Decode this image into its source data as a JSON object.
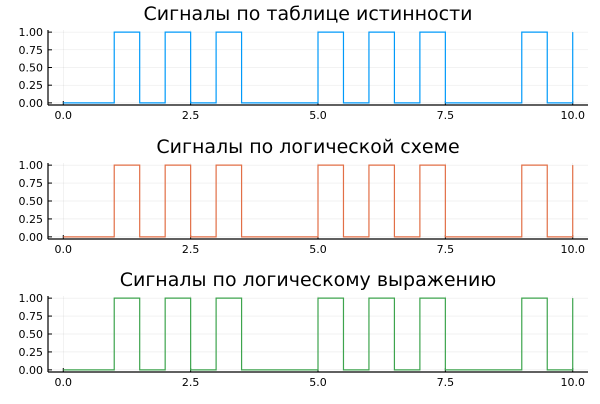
{
  "chart_data": [
    {
      "type": "line",
      "step": "post",
      "title": "Сигналы по таблице истинности",
      "color": "#009AFA",
      "x": [
        0,
        1,
        1.5,
        2,
        2.5,
        3,
        3.5,
        5,
        5.5,
        6,
        6.5,
        7,
        7.5,
        9,
        9.5,
        10
      ],
      "y": [
        0,
        1,
        0,
        1,
        0,
        1,
        0,
        1,
        0,
        1,
        0,
        1,
        0,
        1,
        0,
        1
      ],
      "xlim": [
        -0.3,
        10.3
      ],
      "ylim": [
        -0.03,
        1.03
      ],
      "xticks": [
        "0.0",
        "2.5",
        "5.0",
        "7.5",
        "10.0"
      ],
      "yticks": [
        "0.00",
        "0.25",
        "0.50",
        "0.75",
        "1.00"
      ],
      "grid": true,
      "legend": "none"
    },
    {
      "type": "line",
      "step": "post",
      "title": "Сигналы по логической схеме",
      "color": "#E26F46",
      "x": [
        0,
        1,
        1.5,
        2,
        2.5,
        3,
        3.5,
        5,
        5.5,
        6,
        6.5,
        7,
        7.5,
        9,
        9.5,
        10
      ],
      "y": [
        0,
        1,
        0,
        1,
        0,
        1,
        0,
        1,
        0,
        1,
        0,
        1,
        0,
        1,
        0,
        1
      ],
      "xlim": [
        -0.3,
        10.3
      ],
      "ylim": [
        -0.03,
        1.03
      ],
      "xticks": [
        "0.0",
        "2.5",
        "5.0",
        "7.5",
        "10.0"
      ],
      "yticks": [
        "0.00",
        "0.25",
        "0.50",
        "0.75",
        "1.00"
      ],
      "grid": true,
      "legend": "none"
    },
    {
      "type": "line",
      "step": "post",
      "title": "Сигналы по логическому выражению",
      "color": "#3DA44D",
      "x": [
        0,
        1,
        1.5,
        2,
        2.5,
        3,
        3.5,
        5,
        5.5,
        6,
        6.5,
        7,
        7.5,
        9,
        9.5,
        10
      ],
      "y": [
        0,
        1,
        0,
        1,
        0,
        1,
        0,
        1,
        0,
        1,
        0,
        1,
        0,
        1,
        0,
        1
      ],
      "xlim": [
        -0.3,
        10.3
      ],
      "ylim": [
        -0.03,
        1.03
      ],
      "xticks": [
        "0.0",
        "2.5",
        "5.0",
        "7.5",
        "10.0"
      ],
      "yticks": [
        "0.00",
        "0.25",
        "0.50",
        "0.75",
        "1.00"
      ],
      "grid": true,
      "legend": "none"
    }
  ]
}
